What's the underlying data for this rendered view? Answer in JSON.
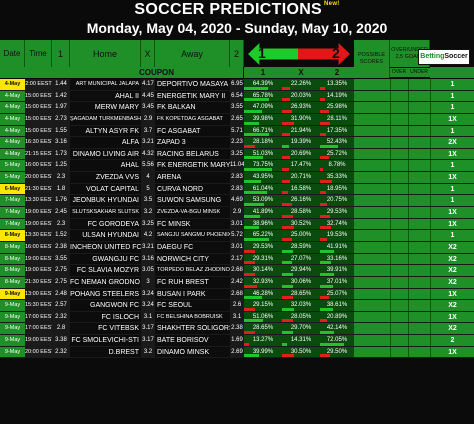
{
  "header": {
    "title": "SOCCER PREDICTIONS",
    "new_badge": "New!",
    "date_range": "Monday, May 04, 2020  -  Sunday, May 10, 2020"
  },
  "columns": {
    "date": "Date",
    "time": "Time",
    "odd1": "1",
    "home": "Home",
    "oddx": "X",
    "away": "Away",
    "odd2": "2",
    "arrow1": "1",
    "arrow2": "2",
    "scores": "POSSIBLE SCORES",
    "ou": "OVER/UNDER 2,5 GOALS",
    "coupon": "COUPON",
    "p1": "1",
    "px": "X",
    "p2": "2",
    "over": "OVER",
    "under": "UNDER",
    "logo_a": "Betting",
    "logo_b": "Soccer"
  },
  "colors": {
    "green": "#1f8f28",
    "highlight": "#ffe600",
    "bar_green": "#21c22c",
    "bar_red": "#e0211b"
  },
  "matches": [
    {
      "date": "4-May",
      "hl": true,
      "time": "2:00 EEST",
      "o1": "1.44",
      "home": "ART MUNICIPAL JALAPA",
      "ox": "4.17",
      "away": "DEPORTIVO MASAYA",
      "o2": "6.95",
      "p1": "64.39%",
      "px": "22.26%",
      "p2": "13.35%",
      "pred": "1",
      "s1": true
    },
    {
      "date": "4-May",
      "hl": false,
      "time": "15:00 EEST",
      "o1": "1.42",
      "home": "AHAL II",
      "ox": "4.45",
      "away": "ENERGETIK MARY II",
      "o2": "6.54",
      "p1": "65.78%",
      "px": "20.03%",
      "p2": "14.19%",
      "pred": "1",
      "s1": true
    },
    {
      "date": "4-May",
      "hl": false,
      "time": "15:00 EEST",
      "o1": "1.97",
      "home": "MERW MARY",
      "ox": "3.45",
      "away": "FK BALKAN",
      "o2": "3.55",
      "p1": "47.09%",
      "px": "26.93%",
      "p2": "25.98%",
      "pred": "1",
      "s1": true
    },
    {
      "date": "4-May",
      "hl": false,
      "time": "15:00 EEST",
      "o1": "2.73",
      "home": "ŞAGADAM TURKMENBASHI",
      "ox": "2.9",
      "away": "FK KOPETDAG ASGABAT",
      "o2": "2.65",
      "p1": "39.98%",
      "px": "31.90%",
      "p2": "28.11%",
      "pred": "1X",
      "s1": true
    },
    {
      "date": "4-May",
      "hl": false,
      "time": "15:00 EEST",
      "o1": "1.55",
      "home": "ALTYN ASYR FK",
      "ox": "3.7",
      "away": "FC ASGABAT",
      "o2": "5.71",
      "p1": "66.71%",
      "px": "21.94%",
      "p2": "17.35%",
      "pred": "1",
      "s1": true
    },
    {
      "date": "4-May",
      "hl": false,
      "time": "16:30 EEST",
      "o1": "3.16",
      "home": "ALFA",
      "ox": "3.21",
      "away": "ZAPAD 3",
      "o2": "2.23",
      "p1": "28.18%",
      "px": "19.39%",
      "p2": "52.43%",
      "pred": "2X",
      "s1": false
    },
    {
      "date": "4-May",
      "hl": false,
      "time": "21:15 EEST",
      "o1": "1.73",
      "home": "DINAMO LIVING AIR",
      "ox": "4.32",
      "away": "RACING BELARUS",
      "o2": "3.25",
      "p1": "51.03%",
      "px": "20.69%",
      "p2": "25.72%",
      "pred": "1X",
      "s1": true
    },
    {
      "date": "5-May",
      "hl": false,
      "time": "16:00 EEST",
      "o1": "1.25",
      "home": "AHAL",
      "ox": "5.56",
      "away": "FK ENERGETIK MARY",
      "o2": "11.04",
      "p1": "73.75%",
      "px": "17.47%",
      "p2": "8.78%",
      "pred": "1",
      "s1": true
    },
    {
      "date": "5-May",
      "hl": false,
      "time": "20:00 EEST",
      "o1": "2.3",
      "home": "ZVEZDA VVS",
      "ox": "4",
      "away": "ARENA",
      "o2": "2.83",
      "p1": "43.95%",
      "px": "20.71%",
      "p2": "35.33%",
      "pred": "1X",
      "s1": true
    },
    {
      "date": "6-May",
      "hl": true,
      "time": "21:30 EEST",
      "o1": "1.8",
      "home": "VOLAT CAPITAL",
      "ox": "5",
      "away": "CURVA NORD",
      "o2": "2.83",
      "p1": "61.04%",
      "px": "16.58%",
      "p2": "18.95%",
      "pred": "1",
      "s1": true
    },
    {
      "date": "7-May",
      "hl": false,
      "time": "13:30 EEST",
      "o1": "1.76",
      "home": "JEONBUK HYUNDAI",
      "ox": "3.5",
      "away": "SUWON SAMSUNG",
      "o2": "4.69",
      "p1": "53.09%",
      "px": "26.16%",
      "p2": "20.75%",
      "pred": "1",
      "s1": true
    },
    {
      "date": "7-May",
      "hl": false,
      "time": "19:00 EEST",
      "o1": "2.45",
      "home": "SLUTSKSAKHAR SLUTSK",
      "ox": "3.2",
      "away": "ZVEZDA-VA-BGU MINSK",
      "o2": "2.9",
      "p1": "41.89%",
      "px": "28.58%",
      "p2": "29.53%",
      "pred": "1X",
      "s1": true
    },
    {
      "date": "7-May",
      "hl": false,
      "time": "19:00 EEST",
      "o1": "2.3",
      "home": "FC GORODEYA",
      "ox": "3.25",
      "away": "FC MINSK",
      "o2": "3.01",
      "p1": "38.96%",
      "px": "30.52%",
      "p2": "32.74%",
      "pred": "1X",
      "s1": true
    },
    {
      "date": "8-May",
      "hl": true,
      "time": "13:30 EEST",
      "o1": "1.52",
      "home": "ULSAN HYUNDAI",
      "ox": "4.2",
      "away": "SANGJU SANGMU PHOENIX",
      "o2": "5.72",
      "p1": "65.22%",
      "px": "25.00%",
      "p2": "19.53%",
      "pred": "1",
      "s1": true
    },
    {
      "date": "8-May",
      "hl": false,
      "time": "16:00 EEST",
      "o1": "2.38",
      "home": "INCHEON UNITED FC",
      "ox": "3.21",
      "away": "DAEGU FC",
      "o2": "3.01",
      "p1": "29.53%",
      "px": "28.59%",
      "p2": "41.91%",
      "pred": "X2",
      "s1": false
    },
    {
      "date": "8-May",
      "hl": false,
      "time": "19:00 EEST",
      "o1": "3.55",
      "home": "GWANGJU FC",
      "ox": "3.16",
      "away": "NORWICH CITY",
      "o2": "2.17",
      "p1": "29.31%",
      "px": "27.07%",
      "p2": "33.16%",
      "pred": "X2",
      "s1": false
    },
    {
      "date": "8-May",
      "hl": false,
      "time": "19:00 EEST",
      "o1": "2.75",
      "home": "FC SLAVIA MOZYR",
      "ox": "3.05",
      "away": "TORPEDO BELAZ ZHODINO",
      "o2": "2.68",
      "p1": "30.14%",
      "px": "29.94%",
      "p2": "39.91%",
      "pred": "X2",
      "s1": false
    },
    {
      "date": "8-May",
      "hl": false,
      "time": "21:30 EEST",
      "o1": "2.75",
      "home": "FC NEMAN GRODNO",
      "ox": "3",
      "away": "FC RUH BREST",
      "o2": "2.42",
      "p1": "32.93%",
      "px": "30.06%",
      "p2": "37.01%",
      "pred": "X2",
      "s1": false
    },
    {
      "date": "9-May",
      "hl": true,
      "time": "13:00 EEST",
      "o1": "2.48",
      "home": "POHANG STEELERS",
      "ox": "3.24",
      "away": "BUSAN I PARK",
      "o2": "2.68",
      "p1": "46.28%",
      "px": "28.65%",
      "p2": "25.07%",
      "pred": "1X",
      "s1": true
    },
    {
      "date": "9-May",
      "hl": false,
      "time": "15:30 EEST",
      "o1": "2.57",
      "home": "GANGWON FC",
      "ox": "3.24",
      "away": "FC SEOUL",
      "o2": "2.6",
      "p1": "29.15%",
      "px": "32.03%",
      "p2": "38.61%",
      "pred": "X2",
      "s1": false
    },
    {
      "date": "9-May",
      "hl": false,
      "time": "17:00 EEST",
      "o1": "2.32",
      "home": "FC ISLOCH",
      "ox": "3.1",
      "away": "FC BELSHINA BOBRUISK",
      "o2": "3.1",
      "p1": "51.06%",
      "px": "28.05%",
      "p2": "20.89%",
      "pred": "1X",
      "s1": true
    },
    {
      "date": "9-May",
      "hl": false,
      "time": "17:00 EEST",
      "o1": "2.8",
      "home": "FC VITEBSK",
      "ox": "3.17",
      "away": "SHAKHTER SOLIGORSK",
      "o2": "2.38",
      "p1": "28.65%",
      "px": "29.70%",
      "p2": "42.14%",
      "pred": "X2",
      "s1": false
    },
    {
      "date": "9-May",
      "hl": false,
      "time": "19:00 EEST",
      "o1": "3.38",
      "home": "FC SMOLEVICHI-STI",
      "ox": "3.17",
      "away": "BATE BORISOV",
      "o2": "1.69",
      "p1": "13.27%",
      "px": "14.31%",
      "p2": "72.05%",
      "pred": "2",
      "s1": false
    },
    {
      "date": "9-May",
      "hl": false,
      "time": "20:00 EEST",
      "o1": "2.32",
      "home": "D.BREST",
      "ox": "3.2",
      "away": "DINAMO MINSK",
      "o2": "2.69",
      "p1": "39.99%",
      "px": "30.50%",
      "p2": "29.50%",
      "pred": "1X",
      "s1": true
    }
  ]
}
